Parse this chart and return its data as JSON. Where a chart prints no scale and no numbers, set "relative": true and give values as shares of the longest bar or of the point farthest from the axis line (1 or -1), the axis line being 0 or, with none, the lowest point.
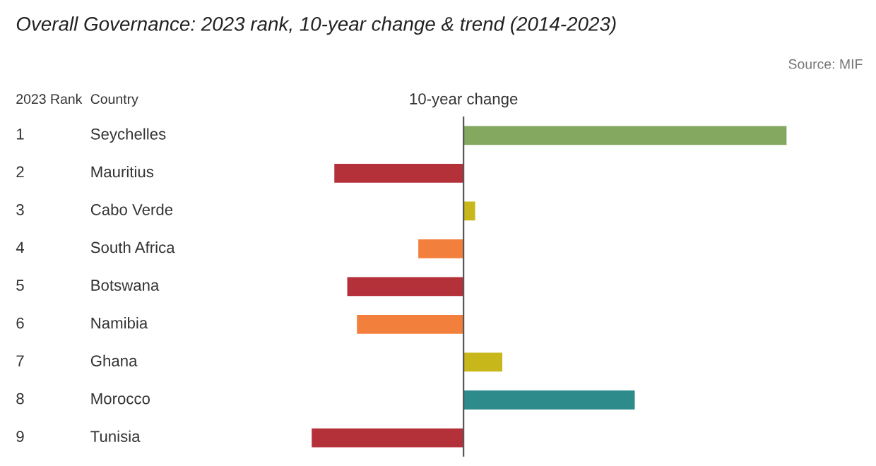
{
  "chart_data": {
    "type": "bar",
    "orientation": "horizontal",
    "relative": true,
    "title": "Overall Governance: 2023 rank, 10-year change & trend (2014-2023)",
    "xlabel": "10-year change",
    "categories": [
      "Seychelles",
      "Mauritius",
      "Cabo Verde",
      "South Africa",
      "Botswana",
      "Namibia",
      "Ghana",
      "Morocco",
      "Tunisia"
    ],
    "values": [
      1,
      -0.4,
      0.036,
      -0.14,
      -0.36,
      -0.33,
      0.12,
      0.53,
      -0.47
    ],
    "colors": [
      "#84a860",
      "#b5313a",
      "#c8b71a",
      "#f37f3c",
      "#b5313a",
      "#f37f3c",
      "#c8b71a",
      "#2e8b8b",
      "#b5313a"
    ],
    "annotations": [
      "1",
      "2",
      "3",
      "4",
      "5",
      "6",
      "7",
      "8",
      "9",
      "2023 Rank",
      "Country",
      "Source: MIF"
    ]
  }
}
